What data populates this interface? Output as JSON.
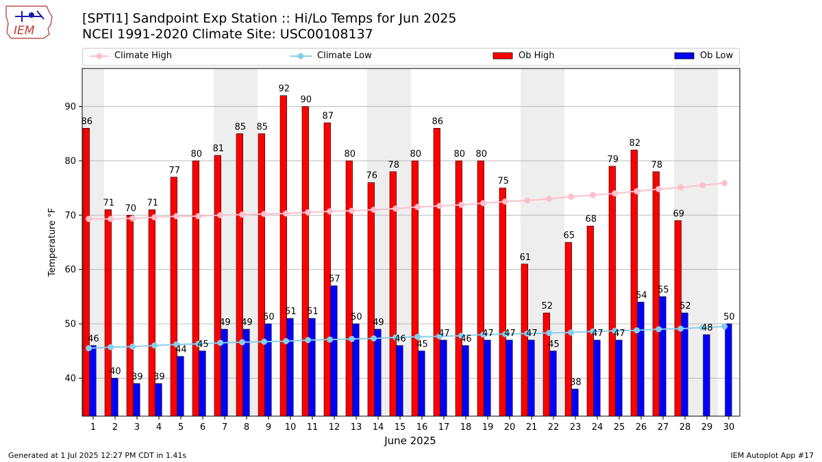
{
  "header": {
    "title_line1": "[SPTI1] Sandpoint Exp Station :: Hi/Lo Temps for Jun 2025",
    "title_line2": "NCEI 1991-2020 Climate Site: USC00108137",
    "logo_text": "IEM"
  },
  "legend": {
    "climate_high": "Climate High",
    "climate_low": "Climate Low",
    "ob_high": "Ob High",
    "ob_low": "Ob Low"
  },
  "footer": {
    "left": "Generated at 1 Jul 2025 12:27 PM CDT in 1.41s",
    "right": "IEM Autoplot App #17"
  },
  "colors": {
    "ob_high": "#ff0000",
    "ob_low": "#0000ff",
    "climate_high": "#ffc0cb",
    "climate_low": "#87ceeb",
    "weekend_shade": "#eeeeee",
    "grid": "#b0b0b0"
  },
  "chart_data": {
    "type": "bar",
    "xlabel": "June 2025",
    "ylabel": "Temperature °F",
    "ylim": [
      33,
      97
    ],
    "yticks": [
      40,
      50,
      60,
      70,
      80,
      90
    ],
    "grid": "horizontal",
    "legend_position": "top",
    "categories": [
      1,
      2,
      3,
      4,
      5,
      6,
      7,
      8,
      9,
      10,
      11,
      12,
      13,
      14,
      15,
      16,
      17,
      18,
      19,
      20,
      21,
      22,
      23,
      24,
      25,
      26,
      27,
      28,
      29,
      30
    ],
    "shaded_days": [
      1,
      7,
      8,
      14,
      15,
      21,
      22,
      28,
      29
    ],
    "series": [
      {
        "name": "Ob High",
        "kind": "bar",
        "values": [
          86,
          71,
          70,
          71,
          77,
          80,
          81,
          85,
          85,
          92,
          90,
          87,
          80,
          76,
          78,
          80,
          86,
          80,
          80,
          75,
          61,
          52,
          65,
          68,
          79,
          82,
          78,
          69,
          null,
          null
        ]
      },
      {
        "name": "Ob Low",
        "kind": "bar",
        "values": [
          46,
          40,
          39,
          39,
          44,
          45,
          49,
          49,
          50,
          51,
          51,
          57,
          50,
          49,
          46,
          45,
          47,
          46,
          47,
          47,
          47,
          45,
          38,
          47,
          47,
          54,
          55,
          52,
          48,
          50
        ]
      },
      {
        "name": "Climate High",
        "kind": "line",
        "values": [
          69.3,
          69.3,
          69.4,
          69.6,
          69.8,
          69.8,
          70.0,
          70.1,
          70.2,
          70.3,
          70.5,
          70.7,
          70.8,
          71.0,
          71.2,
          71.5,
          71.7,
          71.9,
          72.2,
          72.5,
          72.7,
          73.0,
          73.4,
          73.7,
          74.0,
          74.4,
          74.8,
          75.1,
          75.5,
          75.9
        ]
      },
      {
        "name": "Climate Low",
        "kind": "line",
        "values": [
          45.5,
          45.7,
          45.8,
          46.0,
          46.2,
          46.3,
          46.5,
          46.6,
          46.7,
          46.8,
          47.0,
          47.1,
          47.2,
          47.3,
          47.5,
          47.6,
          47.7,
          47.8,
          48.0,
          48.1,
          48.2,
          48.3,
          48.4,
          48.6,
          48.7,
          48.8,
          49.0,
          49.1,
          49.3,
          49.5
        ]
      }
    ]
  }
}
